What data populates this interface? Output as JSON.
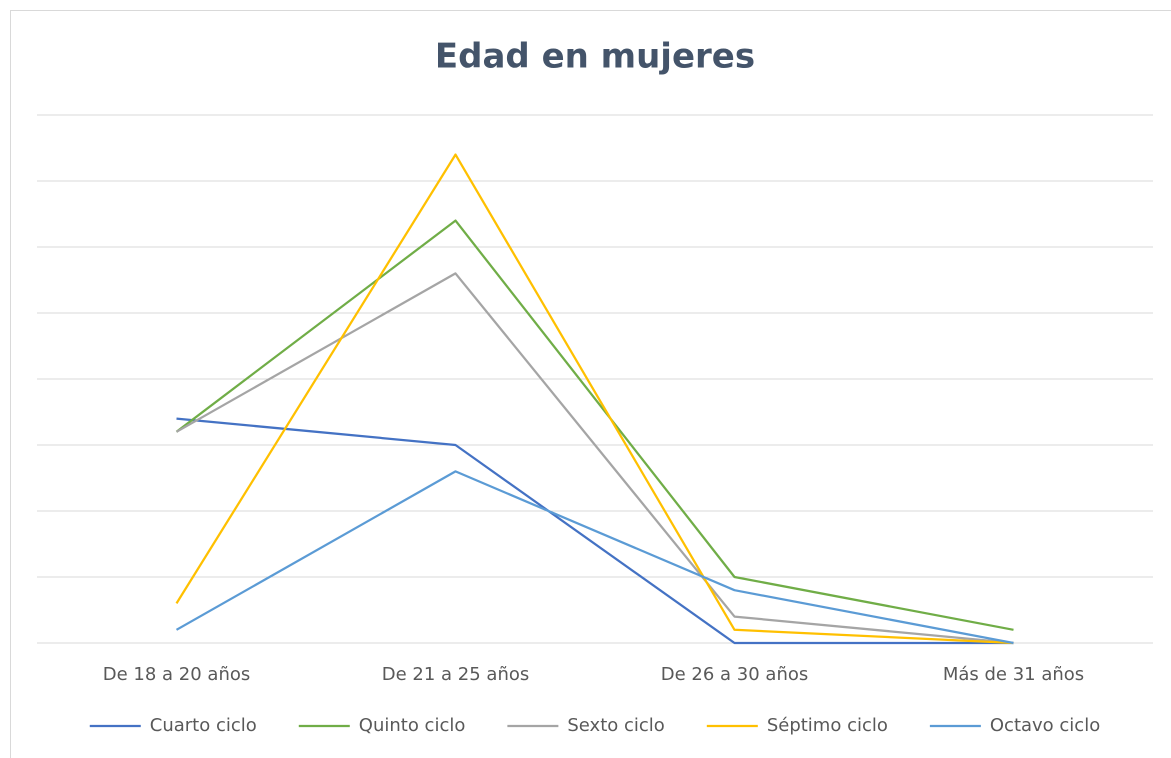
{
  "chart_data": {
    "type": "line",
    "title": "Edad en mujeres",
    "categories": [
      "De 18 a 20 años",
      "De 21 a 25 años",
      "De 26 a 30 años",
      "Más de 31 años"
    ],
    "series": [
      {
        "name": "Cuarto ciclo",
        "color": "#4472c4",
        "values": [
          17,
          15,
          0,
          0
        ]
      },
      {
        "name": "Quinto ciclo",
        "color": "#70ad47",
        "values": [
          16,
          32,
          5,
          1
        ]
      },
      {
        "name": "Sexto ciclo",
        "color": "#a5a5a5",
        "values": [
          16,
          28,
          2,
          0
        ]
      },
      {
        "name": "Séptimo ciclo",
        "color": "#ffc000",
        "values": [
          3,
          37,
          1,
          0
        ]
      },
      {
        "name": "Octavo ciclo",
        "color": "#5b9bd5",
        "values": [
          1,
          13,
          4,
          0
        ]
      }
    ],
    "ylim": [
      0,
      40
    ],
    "yticks": [
      0,
      5,
      10,
      15,
      20,
      25,
      30,
      35,
      40
    ],
    "grid": true,
    "legend": "bottom"
  }
}
